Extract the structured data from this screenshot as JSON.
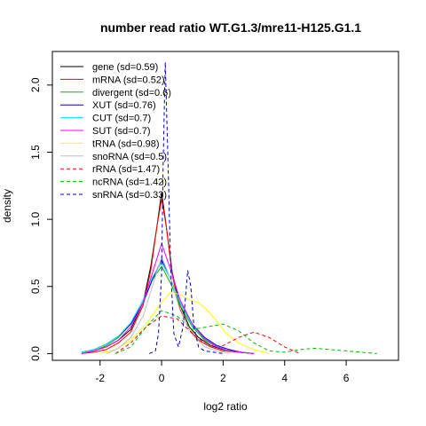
{
  "chart_data": {
    "type": "line",
    "title": "number read ratio WT.G1.3/mre11-H125.G1.1",
    "xlabel": "log2 ratio",
    "ylabel": "density",
    "xlim": [
      -3.55,
      7.7
    ],
    "ylim": [
      -0.05,
      2.25
    ],
    "x_ticks": [
      -2,
      0,
      2,
      4,
      6
    ],
    "y_ticks": [
      0.0,
      0.5,
      1.0,
      1.5,
      2.0
    ],
    "x_tick_labels": [
      "-2",
      "0",
      "2",
      "4",
      "6"
    ],
    "y_tick_labels": [
      "0.0",
      "0.5",
      "1.0",
      "1.5",
      "2.0"
    ],
    "grid": false,
    "legend_position": "top-left",
    "series": [
      {
        "name": "gene (sd=0.59)",
        "color": "#000000",
        "dash": "solid",
        "x": [
          -2.6,
          -2.2,
          -1.8,
          -1.4,
          -1.0,
          -0.6,
          -0.35,
          -0.15,
          0,
          0.15,
          0.35,
          0.6,
          0.9,
          1.2,
          1.6,
          2.0,
          2.5,
          3.0
        ],
        "y": [
          0.0,
          0.02,
          0.05,
          0.1,
          0.18,
          0.38,
          0.65,
          0.95,
          1.2,
          0.95,
          0.6,
          0.36,
          0.2,
          0.12,
          0.06,
          0.03,
          0.01,
          0.0
        ]
      },
      {
        "name": "mRNA (sd=0.52)",
        "color": "#ff0000",
        "dash": "solid",
        "x": [
          -2.6,
          -2.2,
          -1.8,
          -1.4,
          -1.0,
          -0.6,
          -0.35,
          -0.15,
          0,
          0.15,
          0.35,
          0.6,
          0.9,
          1.2,
          1.6,
          2.0,
          2.5,
          3.0
        ],
        "y": [
          0.0,
          0.01,
          0.03,
          0.08,
          0.16,
          0.36,
          0.62,
          0.95,
          1.15,
          0.95,
          0.58,
          0.33,
          0.18,
          0.1,
          0.05,
          0.02,
          0.01,
          0.0
        ]
      },
      {
        "name": "divergent (sd=0.6)",
        "color": "#00bb00",
        "dash": "solid",
        "x": [
          -2.6,
          -2.2,
          -1.8,
          -1.4,
          -1.0,
          -0.6,
          -0.3,
          0,
          0.3,
          0.6,
          1.0,
          1.4,
          1.8,
          2.2,
          2.6,
          3.0
        ],
        "y": [
          0.0,
          0.02,
          0.06,
          0.12,
          0.22,
          0.38,
          0.55,
          0.65,
          0.52,
          0.36,
          0.2,
          0.1,
          0.05,
          0.02,
          0.01,
          0.0
        ]
      },
      {
        "name": "XUT (sd=0.76)",
        "color": "#0000cc",
        "dash": "solid",
        "x": [
          -2.6,
          -2.2,
          -1.8,
          -1.4,
          -1.0,
          -0.6,
          -0.3,
          0,
          0.3,
          0.6,
          1.0,
          1.4,
          1.8,
          2.2,
          2.6,
          3.0
        ],
        "y": [
          0.01,
          0.03,
          0.07,
          0.13,
          0.22,
          0.38,
          0.55,
          0.7,
          0.55,
          0.38,
          0.22,
          0.12,
          0.06,
          0.03,
          0.01,
          0.0
        ]
      },
      {
        "name": "CUT (sd=0.7)",
        "color": "#00e5ee",
        "dash": "solid",
        "x": [
          -2.6,
          -2.2,
          -1.8,
          -1.4,
          -1.0,
          -0.6,
          -0.3,
          0,
          0.3,
          0.6,
          1.0,
          1.4,
          1.8,
          2.2,
          2.6,
          3.0
        ],
        "y": [
          0.01,
          0.03,
          0.07,
          0.13,
          0.23,
          0.4,
          0.57,
          0.68,
          0.55,
          0.38,
          0.21,
          0.11,
          0.05,
          0.02,
          0.01,
          0.0
        ]
      },
      {
        "name": "SUT (sd=0.7)",
        "color": "#ff00ff",
        "dash": "solid",
        "x": [
          -2.6,
          -2.2,
          -1.8,
          -1.4,
          -1.0,
          -0.6,
          -0.3,
          0,
          0.3,
          0.6,
          1.0,
          1.4,
          1.8,
          2.2,
          2.6,
          3.0
        ],
        "y": [
          0.0,
          0.02,
          0.05,
          0.1,
          0.2,
          0.38,
          0.6,
          0.82,
          0.62,
          0.4,
          0.22,
          0.11,
          0.05,
          0.02,
          0.01,
          0.0
        ]
      },
      {
        "name": "tRNA (sd=0.98)",
        "color": "#ffff00",
        "dash": "solid",
        "x": [
          -2.0,
          -1.5,
          -1.0,
          -0.5,
          0,
          0.3,
          0.6,
          0.9,
          1.2,
          1.5,
          1.8,
          2.1,
          2.5,
          3.0,
          3.5
        ],
        "y": [
          0.0,
          0.03,
          0.1,
          0.22,
          0.38,
          0.46,
          0.44,
          0.4,
          0.38,
          0.32,
          0.24,
          0.15,
          0.08,
          0.03,
          0.0
        ]
      },
      {
        "name": "snoRNA (sd=0.5)",
        "color": "#bebebe",
        "dash": "solid",
        "x": [
          -1.8,
          -1.4,
          -1.0,
          -0.6,
          -0.3,
          0,
          0.3,
          0.6,
          1.0,
          1.4,
          1.8,
          2.2
        ],
        "y": [
          0.0,
          0.04,
          0.12,
          0.28,
          0.5,
          0.72,
          0.55,
          0.32,
          0.14,
          0.05,
          0.02,
          0.0
        ]
      },
      {
        "name": "rRNA (sd=1.47)",
        "color": "#ff0000",
        "dash": "dashed",
        "x": [
          -1.5,
          -1.0,
          -0.5,
          0,
          0.5,
          1.0,
          1.5,
          2.0,
          2.5,
          3.0,
          3.5,
          4.0,
          4.5
        ],
        "y": [
          0.0,
          0.08,
          0.2,
          0.28,
          0.26,
          0.15,
          0.06,
          0.06,
          0.12,
          0.16,
          0.12,
          0.05,
          0.0
        ]
      },
      {
        "name": "ncRNA (sd=1.42)",
        "color": "#00bb00",
        "dash": "dashed",
        "x": [
          -1.5,
          -1.0,
          -0.5,
          0,
          0.5,
          1.0,
          1.5,
          2.0,
          2.5,
          3.0,
          3.5,
          4.0,
          4.5,
          5.0,
          5.5,
          6.0,
          6.5,
          7.0
        ],
        "y": [
          0.0,
          0.05,
          0.2,
          0.32,
          0.28,
          0.18,
          0.2,
          0.22,
          0.17,
          0.08,
          0.02,
          0.01,
          0.03,
          0.04,
          0.03,
          0.02,
          0.01,
          0.0
        ]
      },
      {
        "name": "snRNA (sd=0.33)",
        "color": "#0000cc",
        "dash": "dashed",
        "x": [
          -0.4,
          -0.2,
          -0.1,
          0,
          0.05,
          0.12,
          0.2,
          0.3,
          0.4,
          0.55,
          0.7,
          0.85,
          0.95,
          1.05,
          1.2,
          1.4,
          1.7,
          2.0
        ],
        "y": [
          0.0,
          0.02,
          0.15,
          0.6,
          1.4,
          2.17,
          1.5,
          0.6,
          0.15,
          0.05,
          0.2,
          0.62,
          0.5,
          0.2,
          0.05,
          0.02,
          0.01,
          0.0
        ]
      }
    ]
  }
}
